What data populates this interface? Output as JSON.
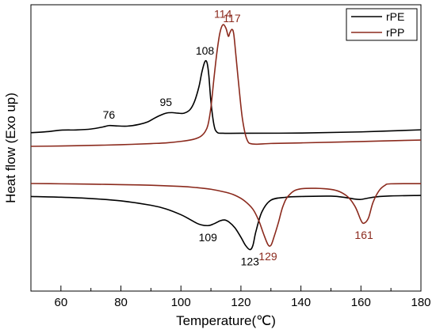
{
  "chart_data": {
    "type": "line",
    "title": "",
    "xlabel": "Temperature(℃)",
    "ylabel": "Heat flow (Exo up)",
    "xlim": [
      50,
      180
    ],
    "x_ticks": [
      60,
      80,
      100,
      120,
      140,
      160,
      180
    ],
    "y_ticks_labeled": false,
    "grid": false,
    "legend_position": "top-right",
    "series": [
      {
        "name": "rPE",
        "color": "#000000",
        "segments": [
          {
            "region": "cooling (exotherm, upper)",
            "x": [
              50,
              55,
              60,
              65,
              70,
              74,
              76,
              78,
              82,
              86,
              89,
              91,
              93,
              95,
              97,
              99,
              101,
              103,
              104.5,
              106,
              107,
              108,
              108.7,
              109.3,
              110,
              111,
              112,
              114,
              120,
              140,
              160,
              180
            ],
            "y": [
              0.5,
              0.58,
              0.72,
              0.74,
              0.82,
              1.0,
              1.12,
              1.1,
              1.07,
              1.22,
              1.45,
              1.74,
              2.0,
              2.2,
              2.25,
              2.2,
              2.2,
              2.5,
              3.2,
              4.5,
              5.8,
              6.7,
              6.6,
              5.5,
              3.2,
              1.2,
              0.55,
              0.45,
              0.45,
              0.47,
              0.57,
              0.75
            ]
          },
          {
            "region": "heating (endotherm, lower)",
            "x": [
              50,
              60,
              70,
              80,
              90,
              95,
              100,
              103,
              106,
              109,
              111,
              113,
              114.5,
              116,
              118,
              120,
              121.5,
              123,
              124,
              125,
              127,
              130,
              135,
              140,
              150,
              155,
              158,
              160,
              162,
              165,
              170,
              180
            ],
            "y": [
              -0.7,
              -0.8,
              -0.98,
              -1.3,
              -1.9,
              -2.4,
              -3.2,
              -3.85,
              -4.5,
              -4.7,
              -4.45,
              -4.05,
              -3.92,
              -4.2,
              -5.0,
              -6.3,
              -7.4,
              -8.0,
              -7.4,
              -5.5,
              -2.8,
              -1.2,
              -0.8,
              -0.7,
              -0.65,
              -0.85,
              -1.05,
              -1.1,
              -0.95,
              -0.75,
              -0.62,
              -0.55
            ]
          }
        ]
      },
      {
        "name": "rPP",
        "color": "#8b2a1d",
        "segments": [
          {
            "region": "cooling (exotherm, upper)",
            "x": [
              50,
              60,
              70,
              80,
              90,
              95,
              100,
              104,
              106,
              107,
              108,
              109,
              110,
              111,
              112,
              113,
              114,
              115,
              115.8,
              116.3,
              117,
              117.6,
              118.3,
              119.3,
              120.5,
              122,
              124,
              130,
              140,
              160,
              180
            ],
            "y": [
              0.0,
              0.03,
              0.08,
              0.14,
              0.24,
              0.3,
              0.43,
              0.6,
              0.78,
              0.95,
              1.25,
              1.85,
              3.4,
              5.9,
              8.2,
              9.9,
              10.6,
              10.3,
              9.6,
              9.9,
              10.2,
              9.8,
              8.0,
              5.3,
              2.4,
              0.6,
              0.2,
              0.25,
              0.3,
              0.42,
              0.55
            ]
          },
          {
            "region": "heating (endotherm, lower)",
            "x": [
              50,
              60,
              70,
              80,
              90,
              100,
              105,
              110,
              115,
              118,
              121,
              124,
              126,
              127.5,
              129,
              130,
              131,
              132.5,
              134,
              136,
              140,
              150,
              155,
              158,
              160,
              161,
              162.5,
              164,
              166,
              168,
              170,
              180
            ],
            "y": [
              0.0,
              -0.04,
              -0.09,
              -0.15,
              -0.24,
              -0.4,
              -0.55,
              -0.78,
              -1.2,
              -1.6,
              -2.3,
              -3.5,
              -5.1,
              -6.8,
              -8.3,
              -8.4,
              -7.3,
              -5.3,
              -3.1,
              -1.6,
              -0.72,
              -0.8,
              -1.6,
              -3.1,
              -5.0,
              -5.4,
              -4.7,
              -2.6,
              -1.0,
              -0.25,
              -0.04,
              -0.02
            ]
          }
        ]
      }
    ],
    "annotations": [
      {
        "text": "76",
        "x": 76,
        "series": "rPE"
      },
      {
        "text": "95",
        "x": 95,
        "series": "rPE"
      },
      {
        "text": "108",
        "x": 108,
        "series": "rPE"
      },
      {
        "text": "114",
        "x": 114,
        "series": "rPP"
      },
      {
        "text": "117",
        "x": 117,
        "series": "rPP"
      },
      {
        "text": "109",
        "x": 109,
        "series": "rPE"
      },
      {
        "text": "123",
        "x": 123,
        "series": "rPE"
      },
      {
        "text": "129",
        "x": 129,
        "series": "rPP"
      },
      {
        "text": "161",
        "x": 161,
        "series": "rPP"
      }
    ]
  }
}
